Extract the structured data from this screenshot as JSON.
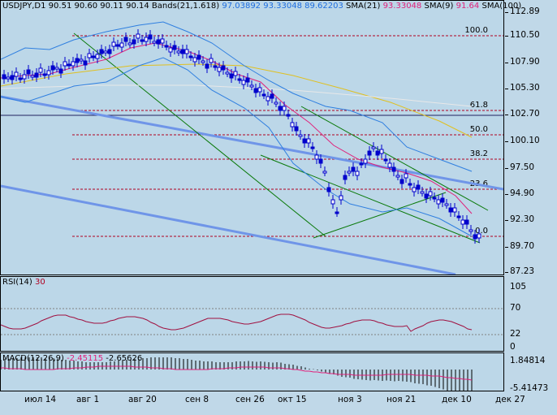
{
  "header": {
    "symbol": "USDJPY,D1",
    "ohlc": "90.51 90.60 90.11 90.14",
    "bands_label": "Bands(21,1.618)",
    "bands_values": "97.03892 93.33048 89.62203",
    "sma21_label": "SMA(21)",
    "sma21_value": "93.33048",
    "sma9_label": "SMA(9)",
    "sma9_value": "91.64",
    "sma100_label": "SMA(100)"
  },
  "rsi": {
    "label": "RSI(14)",
    "value": "30",
    "ticks": [
      "105",
      "70",
      "22",
      "0"
    ]
  },
  "macd": {
    "label": "MACD(12,26,9)",
    "v1": "-2.45115",
    "v2": "-2.65626",
    "ticks": [
      "1.84814",
      "-5.41473"
    ]
  },
  "price_ticks": [
    "112.89",
    "110.50",
    "107.90",
    "105.30",
    "102.70",
    "100.10",
    "97.50",
    "94.90",
    "92.30",
    "89.70",
    "87.23"
  ],
  "fib_levels": [
    "100.0",
    "61.8",
    "50.0",
    "38.2",
    "23.6",
    "0.0"
  ],
  "date_labels": [
    "июл 14",
    "авг 1",
    "авг 20",
    "сен 8",
    "сен 26",
    "окт 15",
    "ноя 3",
    "ноя 21",
    "дек 10",
    "дек 27"
  ],
  "colors": {
    "background": "#BCD7E8",
    "candles": "#0000CC",
    "bollinger": "#2F7FE0",
    "sma21": "#E0207A",
    "sma100": "#E0C020",
    "fibonacci": "#B00020",
    "channel": "#0A7A0A",
    "trendline": "#6F95E8"
  }
}
